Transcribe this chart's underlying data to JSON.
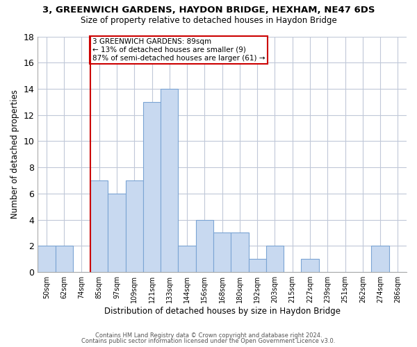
{
  "title": "3, GREENWICH GARDENS, HAYDON BRIDGE, HEXHAM, NE47 6DS",
  "subtitle": "Size of property relative to detached houses in Haydon Bridge",
  "xlabel": "Distribution of detached houses by size in Haydon Bridge",
  "ylabel": "Number of detached properties",
  "footer_line1": "Contains HM Land Registry data © Crown copyright and database right 2024.",
  "footer_line2": "Contains public sector information licensed under the Open Government Licence v3.0.",
  "bin_labels": [
    "50sqm",
    "62sqm",
    "74sqm",
    "85sqm",
    "97sqm",
    "109sqm",
    "121sqm",
    "133sqm",
    "144sqm",
    "156sqm",
    "168sqm",
    "180sqm",
    "192sqm",
    "203sqm",
    "215sqm",
    "227sqm",
    "239sqm",
    "251sqm",
    "262sqm",
    "274sqm",
    "286sqm"
  ],
  "bin_counts": [
    2,
    2,
    0,
    7,
    6,
    7,
    13,
    14,
    2,
    4,
    3,
    3,
    1,
    2,
    0,
    1,
    0,
    0,
    0,
    2,
    0
  ],
  "bar_color": "#c8d9f0",
  "bar_edge_color": "#7ba4d4",
  "annotation_text": "3 GREENWICH GARDENS: 89sqm\n← 13% of detached houses are smaller (9)\n87% of semi-detached houses are larger (61) →",
  "annotation_box_edge": "#cc0000",
  "marker_line_x_label": "85sqm",
  "marker_line_color": "#cc0000",
  "ylim": [
    0,
    18
  ],
  "yticks": [
    0,
    2,
    4,
    6,
    8,
    10,
    12,
    14,
    16,
    18
  ],
  "background_color": "#ffffff",
  "grid_color": "#c0c8d8"
}
